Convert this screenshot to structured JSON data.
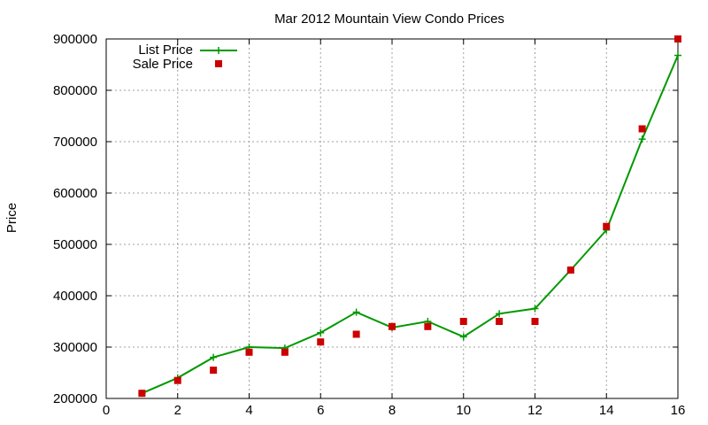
{
  "chart_data": {
    "type": "line",
    "title": "Mar 2012 Mountain View Condo Prices",
    "xlabel": "",
    "ylabel": "Price",
    "xlim": [
      0,
      16
    ],
    "ylim": [
      200000,
      900000
    ],
    "x_ticks": [
      "0",
      "2",
      "4",
      "6",
      "8",
      "10",
      "12",
      "14",
      "16"
    ],
    "y_ticks": [
      "200000",
      "300000",
      "400000",
      "500000",
      "600000",
      "700000",
      "800000",
      "900000"
    ],
    "x_tick_values": [
      0,
      2,
      4,
      6,
      8,
      10,
      12,
      14,
      16
    ],
    "y_tick_values": [
      200000,
      300000,
      400000,
      500000,
      600000,
      700000,
      800000,
      900000
    ],
    "grid": true,
    "legend_position": "top-left",
    "series": [
      {
        "name": "List Price",
        "style": "line-with-plus-markers",
        "color": "#009900",
        "x": [
          1,
          2,
          3,
          4,
          5,
          6,
          7,
          8,
          9,
          10,
          11,
          12,
          13,
          14,
          15,
          16
        ],
        "y": [
          210000,
          240000,
          280000,
          300000,
          298000,
          328000,
          368000,
          338000,
          350000,
          320000,
          365000,
          375000,
          450000,
          528000,
          705000,
          868000
        ]
      },
      {
        "name": "Sale Price",
        "style": "square-markers",
        "color": "#cc0000",
        "x": [
          1,
          2,
          3,
          4,
          5,
          6,
          7,
          8,
          9,
          10,
          11,
          12,
          13,
          14,
          15,
          16
        ],
        "y": [
          210000,
          235000,
          255000,
          290000,
          290000,
          310000,
          325000,
          340000,
          340000,
          350000,
          350000,
          350000,
          450000,
          535000,
          725000,
          900000
        ]
      }
    ]
  }
}
